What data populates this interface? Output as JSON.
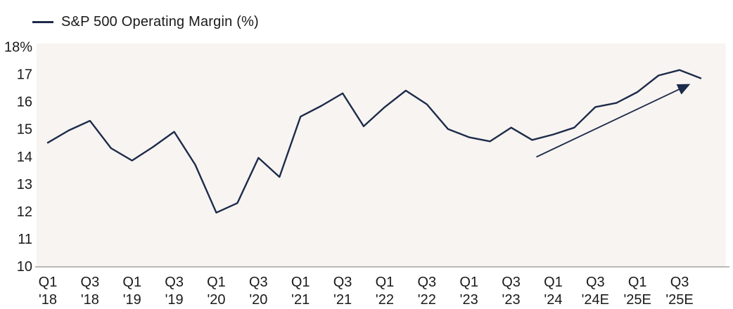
{
  "legend": {
    "label": "S&P 500 Operating Margin (%)"
  },
  "colors": {
    "line": "#1c2b4a",
    "arrow": "#1c2b4a",
    "panel_bg": "#f8f4f1",
    "axis": "#a6a2a0",
    "text": "#1a1a1a",
    "page_bg": "#ffffff"
  },
  "chart_data": {
    "type": "line",
    "title": "S&P 500 Operating Margin (%)",
    "categories": [
      "Q1 '18",
      "Q2 '18",
      "Q3 '18",
      "Q4 '18",
      "Q1 '19",
      "Q2 '19",
      "Q3 '19",
      "Q4 '19",
      "Q1 '20",
      "Q2 '20",
      "Q3 '20",
      "Q4 '20",
      "Q1 '21",
      "Q2 '21",
      "Q3 '21",
      "Q4 '21",
      "Q1 '22",
      "Q2 '22",
      "Q3 '22",
      "Q4 '22",
      "Q1 '23",
      "Q2 '23",
      "Q3 '23",
      "Q4 '23",
      "Q1 '24",
      "Q2 '24",
      "Q3 '24E",
      "Q4 '24E",
      "Q1 '25E",
      "Q2 '25E",
      "Q3 '25E",
      "Q4 '25E"
    ],
    "values": [
      14.5,
      14.95,
      15.3,
      14.3,
      13.85,
      14.35,
      14.9,
      13.7,
      11.95,
      12.3,
      13.95,
      13.25,
      15.45,
      15.85,
      16.3,
      15.1,
      15.8,
      16.4,
      15.9,
      15.0,
      14.7,
      14.55,
      15.05,
      14.6,
      14.8,
      15.05,
      15.8,
      15.95,
      16.35,
      16.95,
      17.15,
      16.85
    ],
    "x_tick_every": 2,
    "visible_x_tick_labels": [
      "Q1 '18",
      "Q3 '18",
      "Q1 '19",
      "Q3 '19",
      "Q1 '20",
      "Q3 '20",
      "Q1 '21",
      "Q3 '21",
      "Q1 '22",
      "Q3 '22",
      "Q1 '23",
      "Q3 '23",
      "Q1 '24",
      "Q3 '24E",
      "Q1 '25E",
      "Q3 '25E"
    ],
    "y_ticks": [
      {
        "value": 18,
        "label": "18%"
      },
      {
        "value": 17,
        "label": "17"
      },
      {
        "value": 16,
        "label": "16"
      },
      {
        "value": 15,
        "label": "15"
      },
      {
        "value": 14,
        "label": "14"
      },
      {
        "value": 13,
        "label": "13"
      },
      {
        "value": 12,
        "label": "12"
      },
      {
        "value": 11,
        "label": "11"
      },
      {
        "value": 10,
        "label": "10"
      }
    ],
    "ylim": [
      10,
      18
    ],
    "grid": false,
    "legend_position": "top-left",
    "annotation_arrow": {
      "from": {
        "x_index": 23.2,
        "value": 13.98
      },
      "to": {
        "x_index": 30.4,
        "value": 16.6
      }
    }
  }
}
